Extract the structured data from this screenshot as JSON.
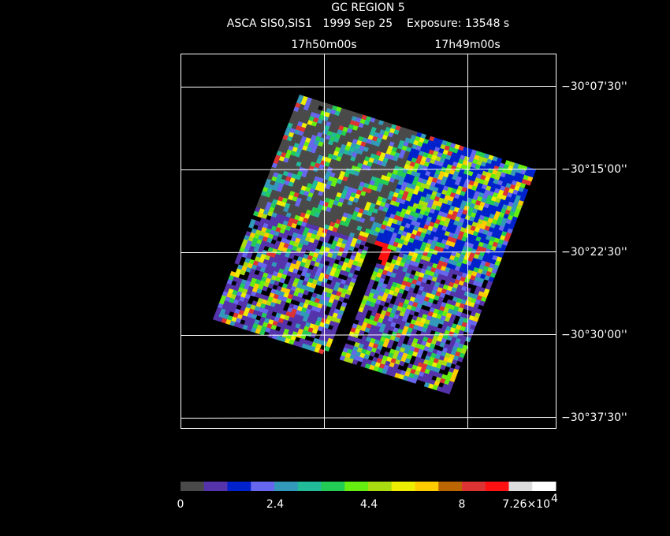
{
  "header": {
    "title": "GC REGION 5",
    "subtitle": "ASCA SIS0,SIS1   1999 Sep 25    Exposure: 13548 s"
  },
  "ra_labels": [
    "17h50m00s",
    "17h49m00s"
  ],
  "dec_labels": [
    "−30°07'30''",
    "−30°15'00''",
    "−30°22'30''",
    "−30°30'00''",
    "−30°37'30''"
  ],
  "colorbar": {
    "colors": [
      "#4a4a4a",
      "#5533aa",
      "#0022cc",
      "#6666ee",
      "#3399bb",
      "#22bb99",
      "#22cc55",
      "#66ee11",
      "#aadd11",
      "#eeee00",
      "#ffcc00",
      "#bb6600",
      "#dd3333",
      "#ff1111",
      "#dddddd",
      "#ffffff"
    ],
    "labels": [
      "0",
      "2.4",
      "4.4",
      "8"
    ],
    "max_label": {
      "mantissa": "7.26×10",
      "exponent": "4"
    }
  }
}
